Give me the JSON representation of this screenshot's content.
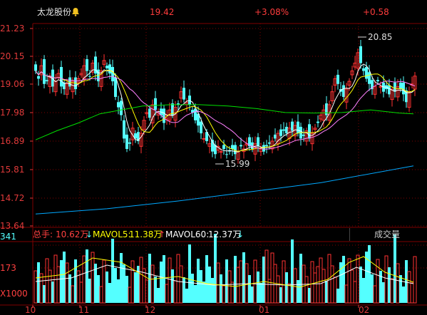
{
  "header": {
    "stock_name": "太龙股份",
    "price": "19.42",
    "change_pct": "+3.08%",
    "change": "+0.58",
    "alert_icon": "bell-icon"
  },
  "price_axis": [
    "21.23",
    "20.15",
    "19.06",
    "17.98",
    "16.89",
    "15.81",
    "14.72",
    "13.64"
  ],
  "annotations": {
    "high": "20.85",
    "low": "15.99"
  },
  "volume_axis": [
    "341",
    "173",
    "X1000"
  ],
  "date_axis": [
    "10",
    "11",
    "12",
    "01",
    "02"
  ],
  "volume_bar": {
    "total_label": "总手:",
    "total_value": "10.62万",
    "ma5_label": "MAVOL5:",
    "ma5_value": "11.38万",
    "ma60_label": "MAVOL60:",
    "ma60_value": "12.37万",
    "indicator_select": "成交量"
  },
  "colors": {
    "up": "#ff3232",
    "down": "#54ffff",
    "ma_white": "#ffffff",
    "ma_yellow": "#ffff00",
    "ma_magenta": "#ff80ff",
    "ma_green": "#00e000",
    "ma_cyan": "#00a8ff",
    "grid": "#800000"
  }
}
